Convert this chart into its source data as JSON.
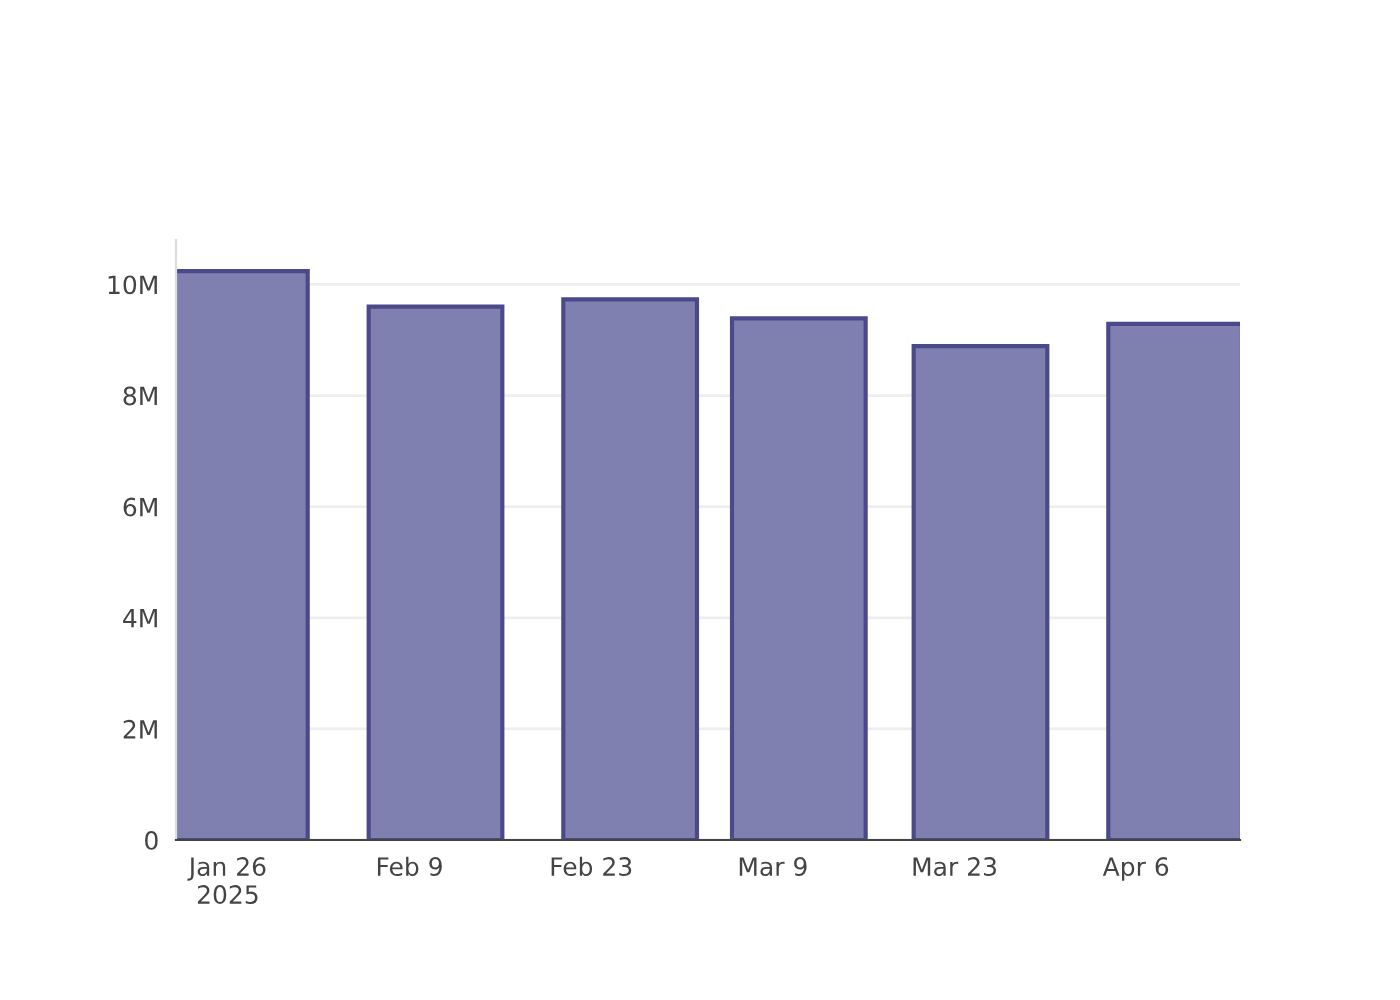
{
  "chart_data": {
    "type": "bar",
    "x": [
      "2025-01-27",
      "2025-02-11",
      "2025-02-26",
      "2025-03-11",
      "2025-03-25",
      "2025-04-09"
    ],
    "values": [
      10240000,
      9600000,
      9730000,
      9390000,
      8890000,
      9290000
    ],
    "color": "#8080b0",
    "xlim": [
      "2025-01-22",
      "2025-04-14"
    ],
    "xticks": [
      {
        "value": "2025-01-26",
        "label": "Jan 26\n2025"
      },
      {
        "value": "2025-02-09",
        "label": "Feb 9"
      },
      {
        "value": "2025-02-23",
        "label": "Feb 23"
      },
      {
        "value": "2025-03-09",
        "label": "Mar 9"
      },
      {
        "value": "2025-03-23",
        "label": "Mar 23"
      },
      {
        "value": "2025-04-06",
        "label": "Apr 6"
      }
    ],
    "ylim": [
      0,
      10800000
    ],
    "yticks": [
      {
        "value": 0,
        "label": "0"
      },
      {
        "value": 2000000,
        "label": "2M"
      },
      {
        "value": 4000000,
        "label": "4M"
      },
      {
        "value": 6000000,
        "label": "6M"
      },
      {
        "value": 8000000,
        "label": "8M"
      },
      {
        "value": 10000000,
        "label": "10M"
      }
    ],
    "grid": "y"
  }
}
